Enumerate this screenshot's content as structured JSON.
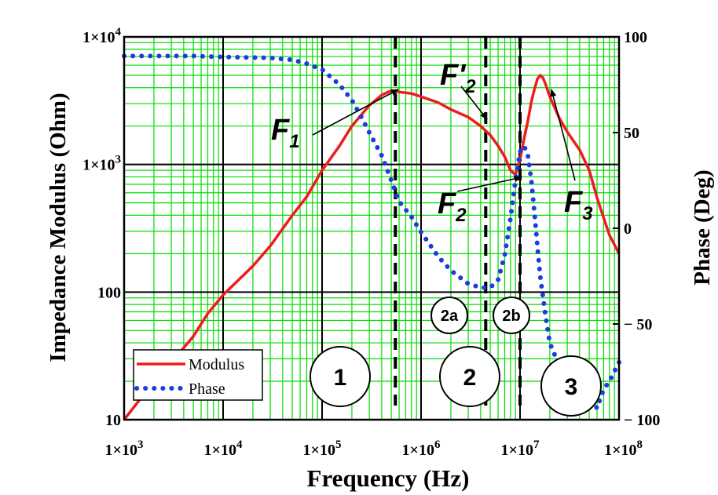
{
  "chart_data": {
    "type": "line",
    "x_scale": "log",
    "y_scale": "log",
    "xlim": [
      1000,
      100000000
    ],
    "ylim": [
      10,
      10000
    ],
    "y2lim": [
      -100,
      100
    ],
    "grid": true,
    "grid_color": "#00dd00",
    "xlabel": "Frequency (Hz)",
    "ylabel": "Impedance Modulus (Ohm)",
    "y2label": "Phase (Deg)",
    "x_ticks": [
      {
        "value": 1000,
        "mant": "1×10",
        "exp": "3"
      },
      {
        "value": 10000,
        "mant": "1×10",
        "exp": "4"
      },
      {
        "value": 100000,
        "mant": "1×10",
        "exp": "5"
      },
      {
        "value": 1000000,
        "mant": "1×10",
        "exp": "6"
      },
      {
        "value": 10000000,
        "mant": "1×10",
        "exp": "7"
      },
      {
        "value": 100000000,
        "mant": "1×10",
        "exp": "8"
      }
    ],
    "y_ticks": [
      {
        "value": 10,
        "mant": "10",
        "exp": ""
      },
      {
        "value": 100,
        "mant": "100",
        "exp": ""
      },
      {
        "value": 1000,
        "mant": "1×10",
        "exp": "3"
      },
      {
        "value": 10000,
        "mant": "1×10",
        "exp": "4"
      }
    ],
    "y2_ticks": [
      {
        "value": 100,
        "label": "100"
      },
      {
        "value": 50,
        "label": "50"
      },
      {
        "value": 0,
        "label": "0"
      },
      {
        "value": -50,
        "label": "− 50"
      },
      {
        "value": -100,
        "label": "− 100"
      }
    ],
    "legend": {
      "placement": "bottom-left",
      "entries": [
        {
          "name": "Modulus",
          "color": "#ee1c1c",
          "style": "solid"
        },
        {
          "name": "Phase",
          "color": "#1c3ce0",
          "style": "dotted"
        }
      ]
    },
    "series": [
      {
        "name": "Modulus",
        "axis": "left",
        "color": "#ee1c1c",
        "points": [
          [
            1000,
            10
          ],
          [
            1500,
            15
          ],
          [
            2000,
            20
          ],
          [
            3000,
            28
          ],
          [
            5000,
            45
          ],
          [
            7000,
            68
          ],
          [
            10000,
            95
          ],
          [
            20000,
            160
          ],
          [
            30000,
            230
          ],
          [
            50000,
            400
          ],
          [
            70000,
            560
          ],
          [
            100000,
            900
          ],
          [
            150000,
            1400
          ],
          [
            200000,
            2000
          ],
          [
            300000,
            2900
          ],
          [
            400000,
            3500
          ],
          [
            500000,
            3800
          ],
          [
            600000,
            3700
          ],
          [
            800000,
            3600
          ],
          [
            1000000,
            3400
          ],
          [
            1500000,
            3050
          ],
          [
            2000000,
            2700
          ],
          [
            3000000,
            2350
          ],
          [
            4000000,
            2000
          ],
          [
            5000000,
            1700
          ],
          [
            6000000,
            1400
          ],
          [
            7000000,
            1150
          ],
          [
            8000000,
            900
          ],
          [
            9000000,
            830
          ],
          [
            10000000,
            1100
          ],
          [
            11000000,
            1600
          ],
          [
            12000000,
            2200
          ],
          [
            13000000,
            3100
          ],
          [
            14000000,
            3900
          ],
          [
            15000000,
            4700
          ],
          [
            16000000,
            5000
          ],
          [
            17000000,
            4800
          ],
          [
            18000000,
            4300
          ],
          [
            20000000,
            3400
          ],
          [
            25000000,
            2300
          ],
          [
            30000000,
            1800
          ],
          [
            40000000,
            1300
          ],
          [
            50000000,
            900
          ],
          [
            60000000,
            550
          ],
          [
            70000000,
            380
          ],
          [
            80000000,
            280
          ],
          [
            100000000,
            200
          ]
        ]
      },
      {
        "name": "Phase",
        "axis": "right",
        "color": "#1c3ce0",
        "points": [
          [
            1000,
            90
          ],
          [
            5000,
            90
          ],
          [
            10000,
            89.5
          ],
          [
            30000,
            89
          ],
          [
            50000,
            88
          ],
          [
            70000,
            86
          ],
          [
            100000,
            83
          ],
          [
            150000,
            75
          ],
          [
            200000,
            67
          ],
          [
            250000,
            58
          ],
          [
            300000,
            50
          ],
          [
            400000,
            38
          ],
          [
            500000,
            25
          ],
          [
            600000,
            14
          ],
          [
            800000,
            6
          ],
          [
            1000000,
            -2
          ],
          [
            1500000,
            -15
          ],
          [
            2000000,
            -22
          ],
          [
            3000000,
            -29
          ],
          [
            4000000,
            -31
          ],
          [
            5000000,
            -31
          ],
          [
            6000000,
            -27
          ],
          [
            7000000,
            -14
          ],
          [
            8000000,
            5
          ],
          [
            9000000,
            25
          ],
          [
            10000000,
            40
          ],
          [
            11000000,
            43
          ],
          [
            12000000,
            38
          ],
          [
            13000000,
            25
          ],
          [
            14000000,
            8
          ],
          [
            15000000,
            -10
          ],
          [
            16000000,
            -25
          ],
          [
            18000000,
            -45
          ],
          [
            20000000,
            -60
          ],
          [
            25000000,
            -72
          ],
          [
            30000000,
            -80
          ],
          [
            40000000,
            -84
          ],
          [
            50000000,
            -88
          ],
          [
            60000000,
            -94
          ],
          [
            70000000,
            -84
          ],
          [
            80000000,
            -80
          ],
          [
            100000000,
            -70
          ]
        ]
      }
    ],
    "markers": [
      {
        "x": 550000,
        "label": "F1",
        "style": "dashed"
      },
      {
        "x": 4500000,
        "label": "F'2",
        "style": "dashed"
      },
      {
        "x": 10000000,
        "label": "F2",
        "style": "dashed"
      }
    ],
    "annotations": {
      "F1": {
        "base": "F",
        "sub": "1"
      },
      "F2prime": {
        "base": "F'",
        "sub": "2"
      },
      "F2": {
        "base": "F",
        "sub": "2"
      },
      "F3": {
        "base": "F",
        "sub": "3"
      },
      "regions": [
        "1",
        "2",
        "3",
        "2a",
        "2b"
      ]
    }
  }
}
